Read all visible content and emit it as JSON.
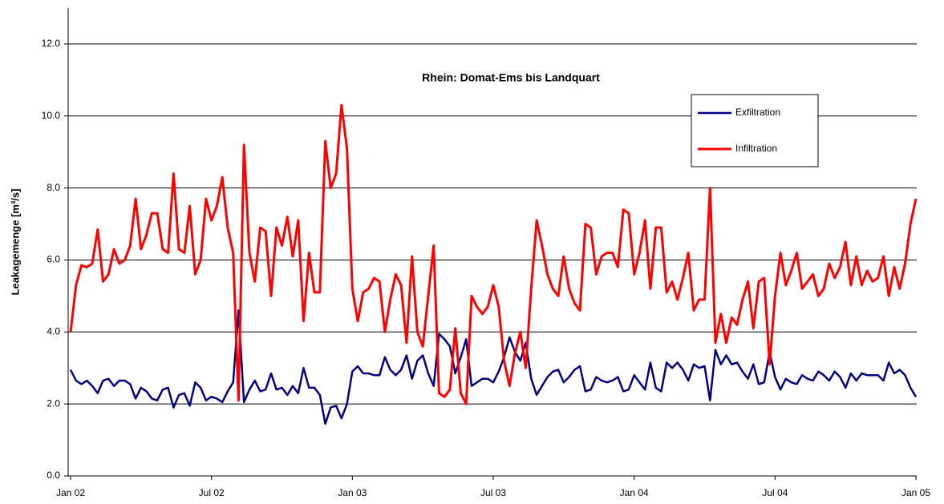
{
  "chart_data": {
    "type": "line",
    "title": "Rhein: Domat-Ems bis Landquart",
    "y_label": "Leakagemenge [m³/s]",
    "categories": [
      "Jan 02",
      null,
      null,
      null,
      null,
      null,
      null,
      null,
      null,
      null,
      null,
      null,
      null,
      null,
      null,
      null,
      null,
      null,
      null,
      null,
      null,
      null,
      null,
      null,
      null,
      null,
      "Jul 02",
      null,
      null,
      null,
      null,
      null,
      null,
      null,
      null,
      null,
      null,
      null,
      null,
      null,
      null,
      null,
      null,
      null,
      null,
      null,
      null,
      null,
      null,
      null,
      null,
      null,
      "Jan 03",
      null,
      null,
      null,
      null,
      null,
      null,
      null,
      null,
      null,
      null,
      null,
      null,
      null,
      null,
      null,
      null,
      null,
      null,
      null,
      null,
      null,
      null,
      null,
      null,
      null,
      "Jul 03",
      null,
      null,
      null,
      null,
      null,
      null,
      null,
      null,
      null,
      null,
      null,
      null,
      null,
      null,
      null,
      null,
      null,
      null,
      null,
      null,
      null,
      null,
      null,
      null,
      null,
      "Jan 04",
      null,
      null,
      null,
      null,
      null,
      null,
      null,
      null,
      null,
      null,
      null,
      null,
      null,
      null,
      null,
      null,
      null,
      null,
      null,
      null,
      null,
      null,
      null,
      null,
      null,
      "Jul 04",
      null,
      null,
      null,
      null,
      null,
      null,
      null,
      null,
      null,
      null,
      null,
      null,
      null,
      null,
      null,
      null,
      null,
      null,
      null,
      null,
      null,
      null,
      null,
      null,
      null,
      "Jan 05"
    ],
    "series": [
      {
        "name": "Exfiltration",
        "color": "#000080",
        "values": [
          2.95,
          2.65,
          2.55,
          2.65,
          2.5,
          2.3,
          2.65,
          2.7,
          2.5,
          2.65,
          2.65,
          2.55,
          2.15,
          2.45,
          2.35,
          2.15,
          2.1,
          2.4,
          2.45,
          1.9,
          2.25,
          2.3,
          1.95,
          2.6,
          2.45,
          2.1,
          2.2,
          2.15,
          2.05,
          2.35,
          2.6,
          4.6,
          2.05,
          2.4,
          2.65,
          2.35,
          2.4,
          2.85,
          2.4,
          2.45,
          2.25,
          2.5,
          2.3,
          3.0,
          2.45,
          2.45,
          2.25,
          1.45,
          1.9,
          1.95,
          1.6,
          2.0,
          2.9,
          3.05,
          2.85,
          2.85,
          2.8,
          2.8,
          3.3,
          2.95,
          2.8,
          2.95,
          3.35,
          2.7,
          3.2,
          3.35,
          2.85,
          2.5,
          3.95,
          3.8,
          3.6,
          2.85,
          3.3,
          3.8,
          2.5,
          2.6,
          2.7,
          2.7,
          2.6,
          2.9,
          3.3,
          3.85,
          3.45,
          3.2,
          3.7,
          2.7,
          2.25,
          2.5,
          2.75,
          2.9,
          2.95,
          2.6,
          2.75,
          2.95,
          3.05,
          2.35,
          2.4,
          2.75,
          2.65,
          2.6,
          2.65,
          2.75,
          2.35,
          2.4,
          2.8,
          2.6,
          2.4,
          3.15,
          2.45,
          2.35,
          3.15,
          3.0,
          3.15,
          2.95,
          2.65,
          3.1,
          3.0,
          3.05,
          2.1,
          3.5,
          3.1,
          3.35,
          3.1,
          3.15,
          2.9,
          2.7,
          3.1,
          2.55,
          2.6,
          3.45,
          2.75,
          2.4,
          2.7,
          2.6,
          2.55,
          2.8,
          2.7,
          2.65,
          2.9,
          2.8,
          2.65,
          2.9,
          2.75,
          2.45,
          2.85,
          2.65,
          2.85,
          2.8,
          2.8,
          2.8,
          2.65,
          3.15,
          2.85,
          2.95,
          2.8,
          2.45,
          2.2
        ]
      },
      {
        "name": "Infiltration",
        "color": "#ff0000",
        "values": [
          4.0,
          5.3,
          5.85,
          5.8,
          5.9,
          6.85,
          5.4,
          5.6,
          6.3,
          5.9,
          6.0,
          6.4,
          7.7,
          6.3,
          6.7,
          7.3,
          7.3,
          6.3,
          6.2,
          8.4,
          6.3,
          6.2,
          7.5,
          5.6,
          6.0,
          7.7,
          7.1,
          7.5,
          8.3,
          6.9,
          6.2,
          2.1,
          9.2,
          6.2,
          5.4,
          6.9,
          6.8,
          5.0,
          6.9,
          6.4,
          7.2,
          6.1,
          7.1,
          4.3,
          6.2,
          5.1,
          5.1,
          9.3,
          8.0,
          8.4,
          10.3,
          9.1,
          5.2,
          4.3,
          5.1,
          5.2,
          5.5,
          5.4,
          4.0,
          4.9,
          5.6,
          5.3,
          3.7,
          6.1,
          4.0,
          3.6,
          5.0,
          6.4,
          2.3,
          2.2,
          2.4,
          4.1,
          2.3,
          2.0,
          5.0,
          4.7,
          4.5,
          4.7,
          5.3,
          4.7,
          3.2,
          2.5,
          3.4,
          4.0,
          3.0,
          5.2,
          7.1,
          6.4,
          5.6,
          5.2,
          5.0,
          6.1,
          5.2,
          4.8,
          4.6,
          7.0,
          6.9,
          5.6,
          6.1,
          6.2,
          6.2,
          5.8,
          7.4,
          7.3,
          5.6,
          6.2,
          7.1,
          5.2,
          6.9,
          6.9,
          5.1,
          5.4,
          4.9,
          5.5,
          6.2,
          4.6,
          4.9,
          4.9,
          8.0,
          3.7,
          4.5,
          3.7,
          4.4,
          4.2,
          4.9,
          5.4,
          4.1,
          5.4,
          5.5,
          3.1,
          5.0,
          6.2,
          5.3,
          5.7,
          6.2,
          5.2,
          5.4,
          5.6,
          5.0,
          5.2,
          5.9,
          5.5,
          5.8,
          6.5,
          5.3,
          6.1,
          5.3,
          5.7,
          5.4,
          5.5,
          6.1,
          5.0,
          5.8,
          5.2,
          5.9,
          7.0,
          7.7
        ]
      }
    ],
    "ylim": [
      0,
      13
    ],
    "yticks": [
      {
        "value": 0,
        "label": "0.0"
      },
      {
        "value": 2,
        "label": "2.0"
      },
      {
        "value": 4,
        "label": "4.0"
      },
      {
        "value": 6,
        "label": "6.0"
      },
      {
        "value": 8,
        "label": "8.0"
      },
      {
        "value": 10,
        "label": "10.0"
      },
      {
        "value": 12,
        "label": "12.0"
      }
    ],
    "grid": true,
    "legend": "upper right"
  }
}
